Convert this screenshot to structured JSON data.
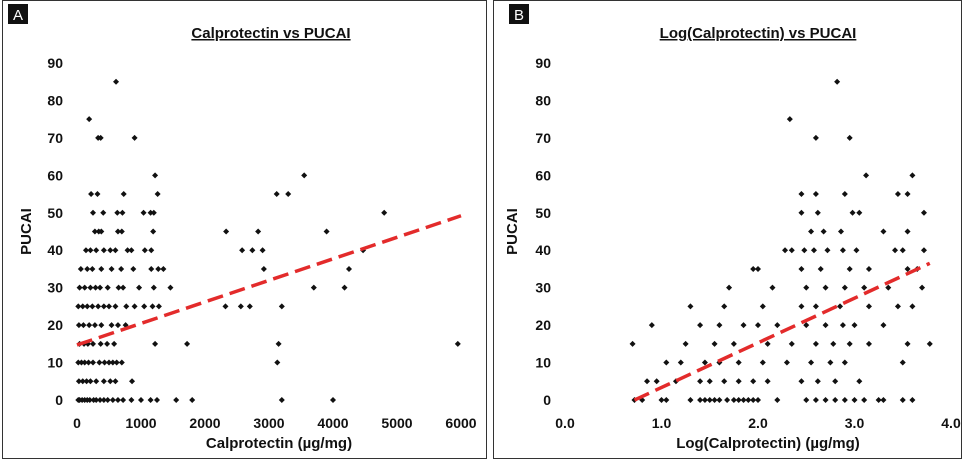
{
  "chart_data": [
    {
      "type": "scatter",
      "panel_label": "A",
      "title": "Calprotectin vs PUCAI",
      "xlabel": "Calprotectin (µg/mg)",
      "ylabel": "PUCAI",
      "xlim": [
        0,
        6000
      ],
      "ylim": [
        0,
        90
      ],
      "xticks": [
        0,
        1000,
        2000,
        3000,
        4000,
        5000,
        6000
      ],
      "xtick_labels": [
        "0",
        "1000",
        "2000",
        "3000",
        "4000",
        "5000",
        "6000"
      ],
      "yticks": [
        0,
        10,
        20,
        30,
        40,
        50,
        60,
        70,
        80,
        90
      ],
      "ytick_labels": [
        "0",
        "10",
        "20",
        "30",
        "40",
        "50",
        "60",
        "70",
        "80",
        "90"
      ],
      "grid": false,
      "point_color": "#111111",
      "trend_color": "#e32b2b",
      "trendline": {
        "x": [
          0,
          6000
        ],
        "y": [
          14.7,
          49.2
        ]
      },
      "points": [
        [
          20,
          0
        ],
        [
          40,
          0
        ],
        [
          80,
          0
        ],
        [
          120,
          0
        ],
        [
          160,
          0
        ],
        [
          200,
          0
        ],
        [
          260,
          0
        ],
        [
          300,
          0
        ],
        [
          360,
          0
        ],
        [
          420,
          0
        ],
        [
          480,
          0
        ],
        [
          560,
          0
        ],
        [
          640,
          0
        ],
        [
          720,
          0
        ],
        [
          850,
          0
        ],
        [
          1000,
          0
        ],
        [
          1150,
          0
        ],
        [
          1250,
          0
        ],
        [
          1550,
          0
        ],
        [
          1800,
          0
        ],
        [
          3200,
          0
        ],
        [
          4000,
          0
        ],
        [
          30,
          5
        ],
        [
          90,
          5
        ],
        [
          150,
          5
        ],
        [
          210,
          5
        ],
        [
          300,
          5
        ],
        [
          420,
          5
        ],
        [
          520,
          5
        ],
        [
          600,
          5
        ],
        [
          860,
          5
        ],
        [
          20,
          10
        ],
        [
          70,
          10
        ],
        [
          120,
          10
        ],
        [
          180,
          10
        ],
        [
          250,
          10
        ],
        [
          350,
          10
        ],
        [
          430,
          10
        ],
        [
          500,
          10
        ],
        [
          560,
          10
        ],
        [
          620,
          10
        ],
        [
          700,
          10
        ],
        [
          3130,
          10
        ],
        [
          40,
          15
        ],
        [
          110,
          15
        ],
        [
          170,
          15
        ],
        [
          250,
          15
        ],
        [
          370,
          15
        ],
        [
          470,
          15
        ],
        [
          580,
          15
        ],
        [
          1220,
          15
        ],
        [
          1720,
          15
        ],
        [
          3150,
          15
        ],
        [
          5950,
          15
        ],
        [
          30,
          20
        ],
        [
          100,
          20
        ],
        [
          190,
          20
        ],
        [
          280,
          20
        ],
        [
          380,
          20
        ],
        [
          540,
          20
        ],
        [
          640,
          20
        ],
        [
          760,
          20
        ],
        [
          20,
          25
        ],
        [
          90,
          25
        ],
        [
          160,
          25
        ],
        [
          240,
          25
        ],
        [
          330,
          25
        ],
        [
          420,
          25
        ],
        [
          500,
          25
        ],
        [
          600,
          25
        ],
        [
          770,
          25
        ],
        [
          900,
          25
        ],
        [
          1050,
          25
        ],
        [
          1180,
          25
        ],
        [
          1280,
          25
        ],
        [
          2320,
          25
        ],
        [
          2560,
          25
        ],
        [
          2700,
          25
        ],
        [
          3200,
          25
        ],
        [
          40,
          30
        ],
        [
          120,
          30
        ],
        [
          210,
          30
        ],
        [
          290,
          30
        ],
        [
          360,
          30
        ],
        [
          480,
          30
        ],
        [
          650,
          30
        ],
        [
          720,
          30
        ],
        [
          970,
          30
        ],
        [
          1200,
          30
        ],
        [
          1460,
          30
        ],
        [
          3700,
          30
        ],
        [
          4180,
          30
        ],
        [
          60,
          35
        ],
        [
          160,
          35
        ],
        [
          240,
          35
        ],
        [
          380,
          35
        ],
        [
          540,
          35
        ],
        [
          690,
          35
        ],
        [
          880,
          35
        ],
        [
          1160,
          35
        ],
        [
          1270,
          35
        ],
        [
          1350,
          35
        ],
        [
          2920,
          35
        ],
        [
          4250,
          35
        ],
        [
          140,
          40
        ],
        [
          210,
          40
        ],
        [
          300,
          40
        ],
        [
          420,
          40
        ],
        [
          520,
          40
        ],
        [
          600,
          40
        ],
        [
          790,
          40
        ],
        [
          850,
          40
        ],
        [
          1060,
          40
        ],
        [
          1160,
          40
        ],
        [
          2580,
          40
        ],
        [
          2740,
          40
        ],
        [
          2900,
          40
        ],
        [
          4470,
          40
        ],
        [
          280,
          45
        ],
        [
          340,
          45
        ],
        [
          380,
          45
        ],
        [
          640,
          45
        ],
        [
          700,
          45
        ],
        [
          1190,
          45
        ],
        [
          2330,
          45
        ],
        [
          2830,
          45
        ],
        [
          3900,
          45
        ],
        [
          250,
          50
        ],
        [
          410,
          50
        ],
        [
          630,
          50
        ],
        [
          710,
          50
        ],
        [
          1040,
          50
        ],
        [
          1150,
          50
        ],
        [
          1200,
          50
        ],
        [
          4800,
          50
        ],
        [
          220,
          55
        ],
        [
          320,
          55
        ],
        [
          730,
          55
        ],
        [
          1260,
          55
        ],
        [
          3120,
          55
        ],
        [
          3300,
          55
        ],
        [
          1220,
          60
        ],
        [
          3550,
          60
        ],
        [
          330,
          70
        ],
        [
          370,
          70
        ],
        [
          900,
          70
        ],
        [
          190,
          75
        ],
        [
          610,
          85
        ]
      ]
    },
    {
      "type": "scatter",
      "panel_label": "B",
      "title": "Log(Calprotectin) vs PUCAI",
      "xlabel": "Log(Calprotectin) (µg/mg)",
      "ylabel": "PUCAI",
      "xlim": [
        0,
        4.0
      ],
      "ylim": [
        0,
        90
      ],
      "xticks": [
        0,
        1,
        2,
        3,
        4
      ],
      "xtick_labels": [
        "0.0",
        "1.0",
        "2.0",
        "3.0",
        "4.0"
      ],
      "yticks": [
        0,
        10,
        20,
        30,
        40,
        50,
        60,
        70,
        80,
        90
      ],
      "ytick_labels": [
        "0",
        "10",
        "20",
        "30",
        "40",
        "50",
        "60",
        "70",
        "80",
        "90"
      ],
      "grid": false,
      "point_color": "#111111",
      "trend_color": "#e32b2b",
      "trendline": {
        "x": [
          0.72,
          3.78
        ],
        "y": [
          0,
          36.5
        ]
      },
      "points": [
        [
          0.72,
          0
        ],
        [
          0.8,
          0
        ],
        [
          1.0,
          0
        ],
        [
          1.05,
          0
        ],
        [
          1.3,
          0
        ],
        [
          1.4,
          0
        ],
        [
          1.45,
          0
        ],
        [
          1.5,
          0
        ],
        [
          1.55,
          0
        ],
        [
          1.6,
          0
        ],
        [
          1.68,
          0
        ],
        [
          1.75,
          0
        ],
        [
          1.8,
          0
        ],
        [
          1.85,
          0
        ],
        [
          1.9,
          0
        ],
        [
          1.95,
          0
        ],
        [
          2.0,
          0
        ],
        [
          2.2,
          0
        ],
        [
          2.5,
          0
        ],
        [
          2.6,
          0
        ],
        [
          2.7,
          0
        ],
        [
          2.8,
          0
        ],
        [
          2.9,
          0
        ],
        [
          3.0,
          0
        ],
        [
          3.1,
          0
        ],
        [
          3.25,
          0
        ],
        [
          3.3,
          0
        ],
        [
          3.5,
          0
        ],
        [
          3.6,
          0
        ],
        [
          0.85,
          5
        ],
        [
          0.95,
          5
        ],
        [
          1.15,
          5
        ],
        [
          1.4,
          5
        ],
        [
          1.5,
          5
        ],
        [
          1.65,
          5
        ],
        [
          1.8,
          5
        ],
        [
          1.95,
          5
        ],
        [
          2.1,
          5
        ],
        [
          2.45,
          5
        ],
        [
          2.62,
          5
        ],
        [
          2.8,
          5
        ],
        [
          3.05,
          5
        ],
        [
          1.05,
          10
        ],
        [
          1.2,
          10
        ],
        [
          1.45,
          10
        ],
        [
          1.6,
          10
        ],
        [
          1.8,
          10
        ],
        [
          2.05,
          10
        ],
        [
          2.3,
          10
        ],
        [
          2.55,
          10
        ],
        [
          2.75,
          10
        ],
        [
          2.9,
          10
        ],
        [
          3.5,
          10
        ],
        [
          0.7,
          15
        ],
        [
          1.25,
          15
        ],
        [
          1.55,
          15
        ],
        [
          1.75,
          15
        ],
        [
          2.1,
          15
        ],
        [
          2.35,
          15
        ],
        [
          2.6,
          15
        ],
        [
          2.78,
          15
        ],
        [
          2.95,
          15
        ],
        [
          3.15,
          15
        ],
        [
          3.55,
          15
        ],
        [
          3.78,
          15
        ],
        [
          0.9,
          20
        ],
        [
          1.4,
          20
        ],
        [
          1.6,
          20
        ],
        [
          1.85,
          20
        ],
        [
          2.0,
          20
        ],
        [
          2.2,
          20
        ],
        [
          2.5,
          20
        ],
        [
          2.7,
          20
        ],
        [
          2.88,
          20
        ],
        [
          3.0,
          20
        ],
        [
          3.3,
          20
        ],
        [
          1.3,
          25
        ],
        [
          1.65,
          25
        ],
        [
          2.05,
          25
        ],
        [
          2.45,
          25
        ],
        [
          2.6,
          25
        ],
        [
          2.85,
          25
        ],
        [
          3.15,
          25
        ],
        [
          3.45,
          25
        ],
        [
          3.6,
          25
        ],
        [
          1.7,
          30
        ],
        [
          2.15,
          30
        ],
        [
          2.5,
          30
        ],
        [
          2.7,
          30
        ],
        [
          2.9,
          30
        ],
        [
          3.1,
          30
        ],
        [
          3.35,
          30
        ],
        [
          3.7,
          30
        ],
        [
          1.95,
          35
        ],
        [
          2.0,
          35
        ],
        [
          2.45,
          35
        ],
        [
          2.65,
          35
        ],
        [
          2.95,
          35
        ],
        [
          3.15,
          35
        ],
        [
          3.55,
          35
        ],
        [
          3.65,
          35
        ],
        [
          2.28,
          40
        ],
        [
          2.35,
          40
        ],
        [
          2.48,
          40
        ],
        [
          2.58,
          40
        ],
        [
          2.72,
          40
        ],
        [
          2.88,
          40
        ],
        [
          3.02,
          40
        ],
        [
          3.42,
          40
        ],
        [
          3.5,
          40
        ],
        [
          3.72,
          40
        ],
        [
          2.55,
          45
        ],
        [
          2.68,
          45
        ],
        [
          2.86,
          45
        ],
        [
          3.3,
          45
        ],
        [
          3.55,
          45
        ],
        [
          2.45,
          50
        ],
        [
          2.62,
          50
        ],
        [
          2.98,
          50
        ],
        [
          3.05,
          50
        ],
        [
          3.72,
          50
        ],
        [
          2.45,
          55
        ],
        [
          2.6,
          55
        ],
        [
          2.9,
          55
        ],
        [
          3.45,
          55
        ],
        [
          3.55,
          55
        ],
        [
          3.12,
          60
        ],
        [
          3.6,
          60
        ],
        [
          2.6,
          70
        ],
        [
          2.95,
          70
        ],
        [
          2.33,
          75
        ],
        [
          2.82,
          85
        ]
      ]
    }
  ]
}
